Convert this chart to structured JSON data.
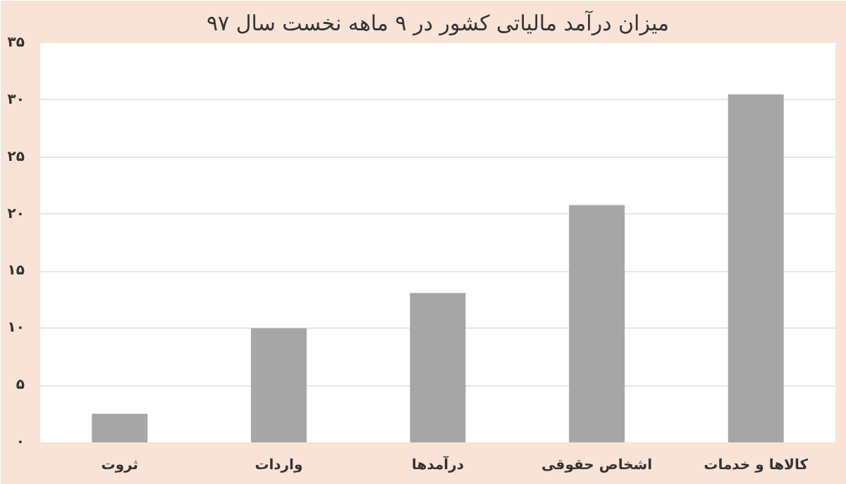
{
  "chart_data": {
    "type": "bar",
    "title": "میزان درآمد مالیاتی کشور در ۹ ماهه نخست سال ۹۷",
    "categories": [
      "ثروت",
      "واردات",
      "درآمدها",
      "اشخاص حقوقی",
      "کالاها و خدمات"
    ],
    "values": [
      2.5,
      10,
      13.1,
      20.8,
      30.5
    ],
    "color": "#a6a6a6",
    "ylim": [
      0,
      35
    ],
    "yticks": [
      {
        "value": 0,
        "label": "۰"
      },
      {
        "value": 5,
        "label": "۵"
      },
      {
        "value": 10,
        "label": "۱۰"
      },
      {
        "value": 15,
        "label": "۱۵"
      },
      {
        "value": 20,
        "label": "۲۰"
      },
      {
        "value": 25,
        "label": "۲۵"
      },
      {
        "value": 30,
        "label": "۳۰"
      },
      {
        "value": 35,
        "label": "۳۵"
      }
    ],
    "grid": "y"
  }
}
